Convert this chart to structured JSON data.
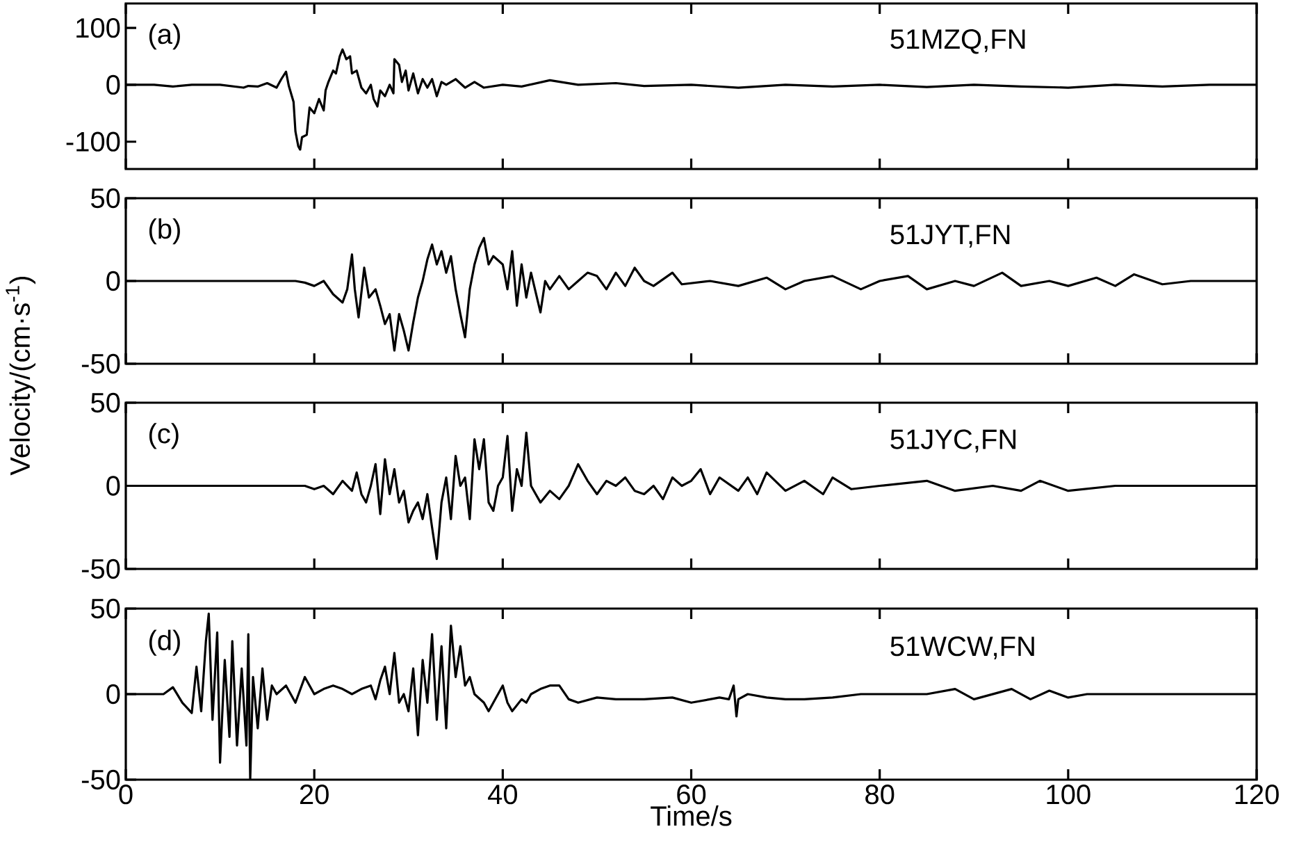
{
  "chart_data": [
    {
      "type": "line",
      "color": "#000000",
      "xlim": [
        0,
        120
      ],
      "xticks": [
        0,
        20,
        40,
        60,
        80,
        100,
        120
      ],
      "ylim": [
        -148,
        143
      ],
      "yticks": [
        -100,
        0,
        100
      ],
      "tick_labels": "y",
      "annotations": [
        "(a)",
        "51MZQ,FN"
      ],
      "x": [
        0,
        3,
        5,
        7,
        10,
        12.5,
        13,
        14,
        15,
        16,
        16.5,
        17,
        17.3,
        17.8,
        18.0,
        18.3,
        18.5,
        18.7,
        19.2,
        19.5,
        20,
        20.3,
        20.5,
        21,
        21.2,
        21.5,
        22,
        22.3,
        22.7,
        23,
        23.4,
        23.8,
        24,
        24.5,
        25,
        25.5,
        26,
        26.3,
        26.7,
        27,
        27.5,
        28,
        28.4,
        28.5,
        29,
        29.3,
        29.7,
        30,
        30.5,
        31,
        31.5,
        32,
        32.5,
        33,
        33.5,
        34,
        35,
        36,
        37,
        38,
        40,
        42,
        45,
        48,
        52,
        55,
        60,
        65,
        70,
        75,
        80,
        85,
        90,
        95,
        100,
        105,
        110,
        115,
        120
      ],
      "values": [
        0,
        0,
        -3,
        0,
        0,
        -5,
        -2,
        -3,
        3,
        -5,
        10,
        23,
        -2,
        -30,
        -82,
        -108,
        -114,
        -92,
        -88,
        -40,
        -50,
        -35,
        -25,
        -45,
        -10,
        5,
        25,
        20,
        50,
        62,
        45,
        50,
        20,
        25,
        -5,
        -15,
        0,
        -25,
        -38,
        -10,
        -20,
        0,
        -15,
        45,
        35,
        5,
        25,
        -10,
        20,
        -15,
        10,
        -5,
        10,
        -20,
        5,
        0,
        10,
        -5,
        5,
        -5,
        0,
        -3,
        8,
        0,
        3,
        -2,
        0,
        -5,
        0,
        -3,
        0,
        -4,
        0,
        -3,
        -5,
        0,
        -3,
        0,
        0
      ]
    },
    {
      "type": "line",
      "color": "#000000",
      "xlim": [
        0,
        120
      ],
      "xticks": [
        0,
        20,
        40,
        60,
        80,
        100,
        120
      ],
      "ylim": [
        -50,
        50
      ],
      "yticks": [
        -50,
        0,
        50
      ],
      "tick_labels": "y",
      "ylabel": "Velocity/(cm·s$^{-1}$)",
      "annotations": [
        "(b)",
        "51JYT,FN"
      ],
      "x": [
        0,
        5,
        10,
        18,
        19,
        20,
        21,
        22,
        23,
        23.5,
        24,
        24.3,
        24.7,
        25.3,
        25.8,
        26.5,
        27,
        27.5,
        28,
        28.5,
        29,
        29.5,
        30,
        30.5,
        31,
        31.5,
        32,
        32.5,
        33,
        33.5,
        34,
        34.5,
        35,
        35.5,
        36,
        36.5,
        37,
        37.5,
        38,
        38.5,
        39,
        40,
        40.5,
        41,
        41.5,
        42,
        42.5,
        43,
        44,
        44.5,
        45,
        46,
        47,
        48,
        49,
        50,
        51,
        52,
        53,
        54,
        55,
        56,
        58,
        59,
        62,
        65,
        68,
        70,
        72,
        75,
        78,
        80,
        83,
        85,
        88,
        90,
        93,
        95,
        98,
        100,
        103,
        105,
        107,
        110,
        113,
        117,
        120
      ],
      "values": [
        0,
        0,
        0,
        0,
        -1,
        -3,
        0,
        -8,
        -13,
        -5,
        16,
        -5,
        -22,
        8,
        -10,
        -5,
        -15,
        -26,
        -20,
        -42,
        -20,
        -30,
        -42,
        -25,
        -10,
        0,
        13,
        22,
        10,
        18,
        5,
        15,
        -5,
        -20,
        -34,
        -5,
        10,
        20,
        26,
        10,
        15,
        10,
        -5,
        18,
        -15,
        10,
        -10,
        5,
        -19,
        0,
        -5,
        3,
        -5,
        0,
        5,
        3,
        -5,
        5,
        -3,
        8,
        0,
        -3,
        5,
        -2,
        0,
        -3,
        2,
        -5,
        0,
        3,
        -5,
        0,
        3,
        -5,
        0,
        -3,
        5,
        -3,
        0,
        -3,
        2,
        -3,
        4,
        -2,
        0,
        0,
        0
      ]
    },
    {
      "type": "line",
      "color": "#000000",
      "xlim": [
        0,
        120
      ],
      "xticks": [
        0,
        20,
        40,
        60,
        80,
        100,
        120
      ],
      "ylim": [
        -50,
        50
      ],
      "yticks": [
        -50,
        0,
        50
      ],
      "tick_labels": "y",
      "annotations": [
        "(c)",
        "51JYC,FN"
      ],
      "x": [
        0,
        10,
        15,
        19,
        20,
        21,
        22,
        23,
        24,
        24.5,
        25,
        25.5,
        26,
        26.5,
        27,
        27.5,
        28,
        28.5,
        29,
        29.5,
        30,
        30.5,
        31,
        31.5,
        32,
        32.5,
        33,
        33.5,
        34,
        34.5,
        35,
        35.5,
        36,
        36.5,
        37,
        37.5,
        38,
        38.5,
        39,
        39.5,
        40,
        40.5,
        41,
        41.5,
        42,
        42.5,
        43,
        43.5,
        44,
        45,
        46,
        47,
        48,
        49,
        50,
        51,
        52,
        53,
        54,
        55,
        56,
        57,
        58,
        59,
        60,
        61,
        62,
        63,
        65,
        66,
        67,
        68,
        70,
        72,
        74,
        75,
        77,
        80,
        85,
        88,
        92,
        95,
        97,
        100,
        105,
        110,
        120
      ],
      "values": [
        0,
        0,
        0,
        0,
        -2,
        0,
        -5,
        3,
        -3,
        8,
        -5,
        -10,
        0,
        13,
        -17,
        16,
        -5,
        10,
        -10,
        -3,
        -22,
        -15,
        -10,
        -20,
        -5,
        -25,
        -44,
        -10,
        5,
        -20,
        18,
        0,
        5,
        -20,
        28,
        10,
        28,
        -10,
        -15,
        0,
        5,
        30,
        -15,
        10,
        0,
        32,
        0,
        -5,
        -10,
        -3,
        -8,
        0,
        13,
        3,
        -5,
        3,
        0,
        5,
        -3,
        -5,
        0,
        -8,
        5,
        0,
        3,
        10,
        -5,
        5,
        -3,
        5,
        -5,
        8,
        -3,
        3,
        -5,
        5,
        -2,
        0,
        3,
        -3,
        0,
        -3,
        3,
        -3,
        0,
        0,
        0
      ]
    },
    {
      "type": "line",
      "color": "#000000",
      "xlim": [
        0,
        120
      ],
      "xticks": [
        0,
        20,
        40,
        60,
        80,
        100,
        120
      ],
      "ylim": [
        -50,
        50
      ],
      "yticks": [
        -50,
        0,
        50
      ],
      "xlabel": "Time/s",
      "annotations": [
        "(d)",
        "51WCW,FN"
      ],
      "x": [
        0,
        4,
        5,
        6,
        7,
        7.5,
        8,
        8.5,
        8.8,
        9.2,
        9.7,
        10,
        10.5,
        11,
        11.3,
        11.8,
        12.3,
        12.8,
        13,
        13.2,
        13.5,
        14,
        14.5,
        15,
        15.5,
        16,
        17,
        18,
        19,
        20,
        21,
        22,
        23,
        24,
        25,
        26,
        26.5,
        27,
        27.5,
        28,
        28.5,
        29,
        29.5,
        30,
        30.5,
        31,
        31.5,
        32,
        32.5,
        33,
        33.5,
        34,
        34.5,
        35,
        35.5,
        36,
        36.5,
        37,
        38,
        38.5,
        39,
        40,
        40.5,
        41,
        42,
        42.5,
        43,
        44,
        45,
        46,
        47,
        48,
        50,
        52,
        55,
        58,
        60,
        62,
        63,
        64,
        64.5,
        64.8,
        65,
        66,
        68,
        70,
        72,
        75,
        78,
        80,
        85,
        88,
        90,
        92,
        94,
        96,
        98,
        100,
        102,
        105,
        110,
        115,
        120
      ],
      "values": [
        0,
        0,
        4,
        -5,
        -11,
        16,
        -10,
        31,
        47,
        -15,
        36,
        -40,
        20,
        -25,
        31,
        -30,
        15,
        -30,
        35,
        -50,
        10,
        -20,
        15,
        -15,
        5,
        0,
        5,
        -5,
        10,
        0,
        3,
        5,
        3,
        0,
        3,
        5,
        -3,
        8,
        16,
        0,
        24,
        -5,
        0,
        -10,
        15,
        -24,
        20,
        -5,
        35,
        -15,
        28,
        -20,
        40,
        10,
        28,
        5,
        10,
        0,
        -5,
        -10,
        -5,
        5,
        -5,
        -10,
        -3,
        -5,
        0,
        3,
        5,
        5,
        -3,
        -5,
        -2,
        -3,
        -3,
        -2,
        -5,
        -3,
        -2,
        -3,
        5,
        -13,
        -3,
        0,
        -2,
        -3,
        -3,
        -2,
        0,
        0,
        0,
        3,
        -3,
        0,
        3,
        -3,
        2,
        -2,
        0,
        0,
        0,
        0,
        0
      ]
    }
  ]
}
